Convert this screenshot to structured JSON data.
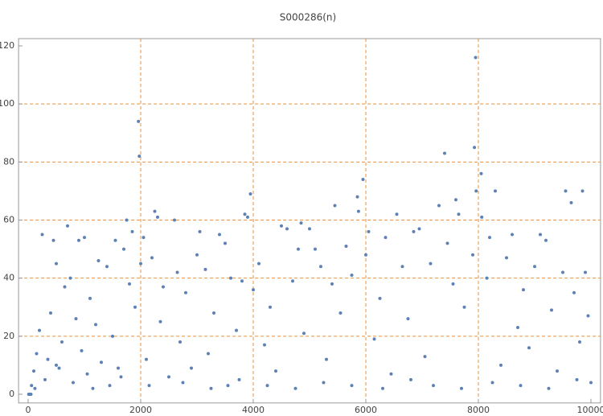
{
  "chart_data": {
    "type": "scatter",
    "title": "S000286(n)",
    "color": "#5e81b5",
    "x": [
      10,
      30,
      50,
      60,
      100,
      150,
      200,
      250,
      300,
      350,
      400,
      450,
      500,
      550,
      600,
      650,
      700,
      750,
      800,
      850,
      900,
      950,
      1000,
      1050,
      1100,
      1200,
      1250,
      1300,
      1400,
      1450,
      1500,
      1550,
      1600,
      1700,
      1750,
      1800,
      1850,
      1900,
      1960,
      1975,
      2000,
      2050,
      2100,
      2200,
      2250,
      2300,
      2350,
      2400,
      2500,
      2600,
      2650,
      2700,
      2800,
      2900,
      3000,
      3050,
      3150,
      3200,
      3300,
      3400,
      3500,
      3550,
      3600,
      3700,
      3800,
      3850,
      3900,
      3950,
      4000,
      4100,
      4200,
      4300,
      4400,
      4500,
      4600,
      4700,
      4800,
      4850,
      4900,
      5000,
      5100,
      5200,
      5300,
      5400,
      5450,
      5550,
      5650,
      5750,
      5850,
      5870,
      5950,
      6000,
      6050,
      6150,
      6250,
      6350,
      6450,
      6550,
      6650,
      6750,
      6850,
      6950,
      7050,
      7150,
      7300,
      7400,
      7450,
      7550,
      7600,
      7650,
      7750,
      7900,
      7930,
      7950,
      7960,
      8050,
      8060,
      8150,
      8200,
      8300,
      8400,
      8500,
      8600,
      8700,
      8800,
      8900,
      9000,
      9100,
      9200,
      9300,
      9400,
      9500,
      9550,
      9650,
      9700,
      9800,
      9850,
      9900,
      9950,
      10000,
      120,
      500,
      1150,
      1650,
      2150,
      2750,
      3250,
      3750,
      4250,
      4750,
      5250,
      5750,
      6300,
      6800,
      7200,
      7700,
      8250,
      8750,
      9250,
      9750
    ],
    "values": [
      0,
      0,
      0,
      3,
      8,
      14,
      22,
      55,
      5,
      12,
      28,
      53,
      45,
      9,
      18,
      37,
      58,
      40,
      4,
      26,
      53,
      15,
      54,
      7,
      33,
      24,
      46,
      11,
      44,
      3,
      20,
      53,
      9,
      50,
      60,
      38,
      56,
      30,
      94,
      82,
      45,
      54,
      12,
      47,
      63,
      61,
      25,
      37,
      6,
      60,
      42,
      18,
      35,
      9,
      48,
      56,
      43,
      14,
      28,
      55,
      52,
      3,
      40,
      22,
      39,
      62,
      61,
      69,
      36,
      45,
      17,
      30,
      8,
      58,
      57,
      39,
      50,
      59,
      21,
      57,
      50,
      44,
      12,
      38,
      65,
      28,
      51,
      41,
      68,
      63,
      74,
      48,
      56,
      19,
      33,
      54,
      7,
      62,
      44,
      26,
      56,
      57,
      13,
      45,
      65,
      83,
      52,
      38,
      67,
      62,
      30,
      48,
      85,
      116,
      70,
      76,
      61,
      40,
      54,
      70,
      10,
      47,
      55,
      23,
      36,
      16,
      44,
      55,
      53,
      29,
      8,
      42,
      70,
      66,
      35,
      18,
      70,
      42,
      27,
      4,
      2,
      10,
      2,
      6,
      3,
      4,
      2,
      5,
      3,
      2,
      4,
      3,
      2,
      5,
      3,
      2,
      4,
      3,
      2,
      5
    ],
    "xlim": [
      -170,
      10170
    ],
    "ylim": [
      -3,
      122.5
    ],
    "xticks": [
      0,
      2000,
      4000,
      6000,
      8000,
      10000
    ],
    "yticks": [
      0,
      20,
      40,
      60,
      80,
      100,
      120
    ],
    "grid_x": [
      2000,
      4000,
      6000,
      8000
    ],
    "grid_y": [
      20,
      40,
      60,
      80,
      100
    ],
    "grid_color": "#e8903a"
  }
}
